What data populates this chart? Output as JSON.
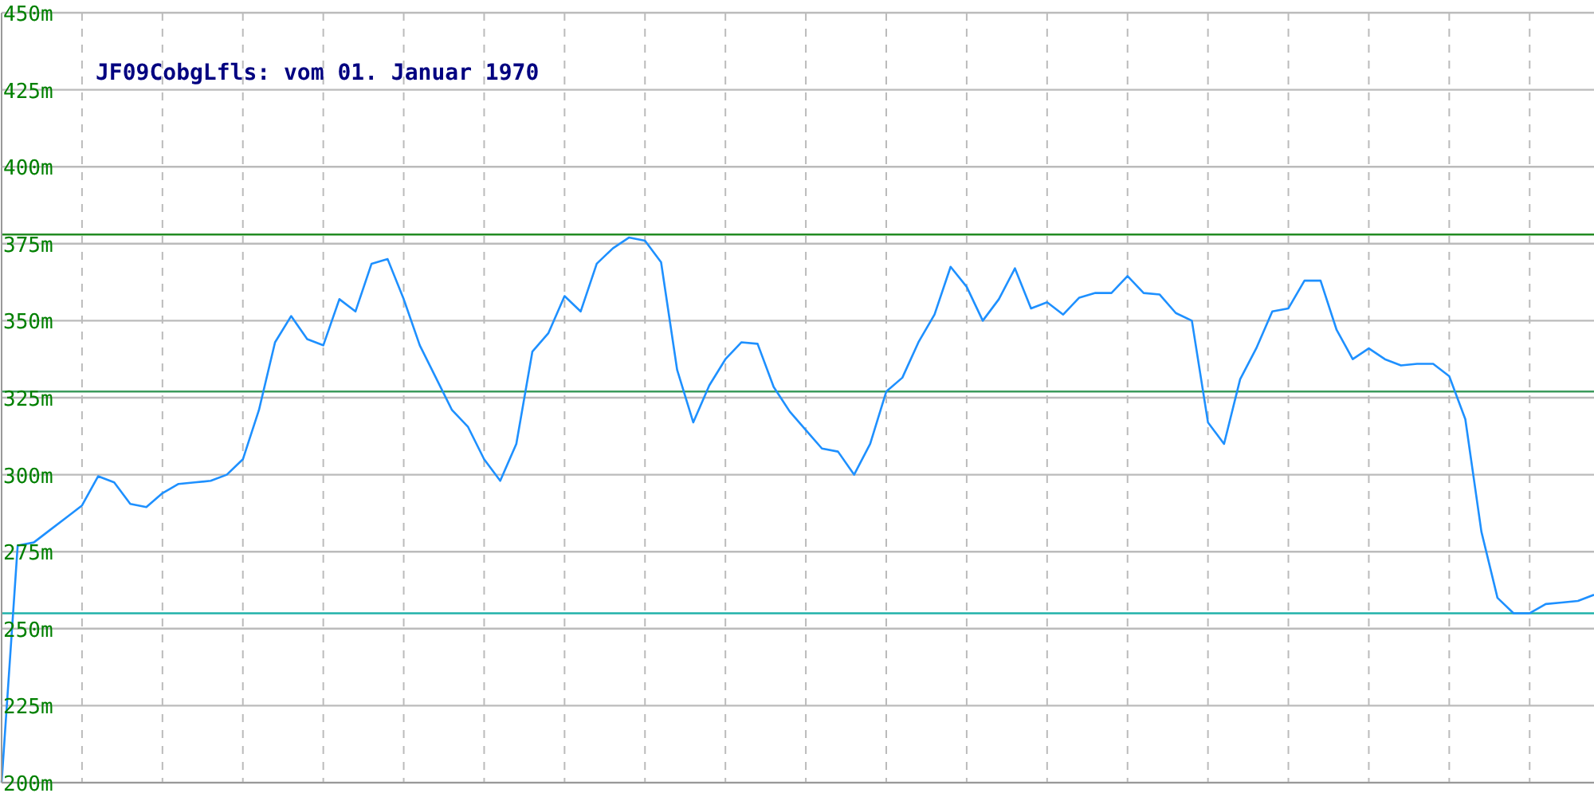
{
  "chart_data": {
    "type": "line",
    "title": "JF09CobgLfls: vom 01. Januar 1970",
    "categories": [
      null,
      null,
      null,
      null,
      null,
      null,
      null,
      null,
      null,
      null,
      null,
      null,
      null,
      null,
      null,
      null,
      null,
      null,
      null,
      null,
      null,
      null,
      null,
      null,
      null,
      null,
      null,
      null,
      null,
      null,
      null,
      null,
      null,
      null,
      null,
      null,
      null,
      null,
      null,
      null,
      null,
      null,
      null,
      null,
      null,
      null,
      null,
      null,
      null,
      null,
      null,
      null,
      null,
      null,
      null,
      null,
      null,
      null,
      null,
      null,
      null,
      null,
      null,
      null,
      null,
      null,
      null,
      null,
      null,
      null,
      null,
      null,
      null,
      null,
      null,
      null,
      null,
      null,
      null,
      null,
      null,
      null,
      null,
      null,
      null,
      null,
      null,
      null,
      null,
      null,
      null,
      null,
      null,
      null,
      null,
      null,
      null,
      null,
      null,
      null
    ],
    "series": [
      {
        "color": "#1e90ff",
        "values": [
          200,
          277,
          278,
          282,
          286,
          290,
          299.5,
          297.5,
          290.5,
          289.5,
          294,
          297,
          297.5,
          298,
          300,
          305,
          321,
          343,
          351.5,
          344,
          342,
          357,
          353,
          368.5,
          370,
          357,
          342,
          331.5,
          321,
          315.5,
          305,
          298,
          310,
          340,
          346,
          358,
          353,
          368.5,
          373.5,
          377,
          376,
          369,
          334,
          317,
          329,
          337.5,
          343,
          342.5,
          328.5,
          320.5,
          314.5,
          308.5,
          307.5,
          300,
          310,
          327,
          331.5,
          343,
          352,
          367.5,
          361,
          350,
          357,
          367,
          354,
          356,
          352,
          357.5,
          359,
          359,
          364.5,
          359,
          358.5,
          352.5,
          350,
          317,
          310,
          331,
          341,
          353,
          354,
          363,
          363,
          347,
          337.5,
          341,
          337.5,
          335.5,
          336,
          336,
          332,
          318,
          281.5,
          260,
          255,
          255,
          258,
          258.5,
          259,
          261
        ]
      }
    ],
    "ylim": [
      200,
      450
    ],
    "yticks": [
      {
        "value": 200,
        "label": "200m"
      },
      {
        "value": 225,
        "label": "225m"
      },
      {
        "value": 250,
        "label": "250m"
      },
      {
        "value": 275,
        "label": "275m"
      },
      {
        "value": 300,
        "label": "300m"
      },
      {
        "value": 325,
        "label": "325m"
      },
      {
        "value": 350,
        "label": "350m"
      },
      {
        "value": 375,
        "label": "375m"
      },
      {
        "value": 400,
        "label": "400m"
      },
      {
        "value": 425,
        "label": "425m"
      },
      {
        "value": 450,
        "label": "450m"
      }
    ],
    "grid": true,
    "marker": "none",
    "line_style": "solid",
    "ref_lines": [
      {
        "axis": "y",
        "value": 378,
        "color": "#228b22"
      },
      {
        "axis": "y",
        "value": 327,
        "color": "#3c9a5c"
      },
      {
        "axis": "y",
        "value": 255,
        "color": "#20b2aa"
      }
    ]
  }
}
